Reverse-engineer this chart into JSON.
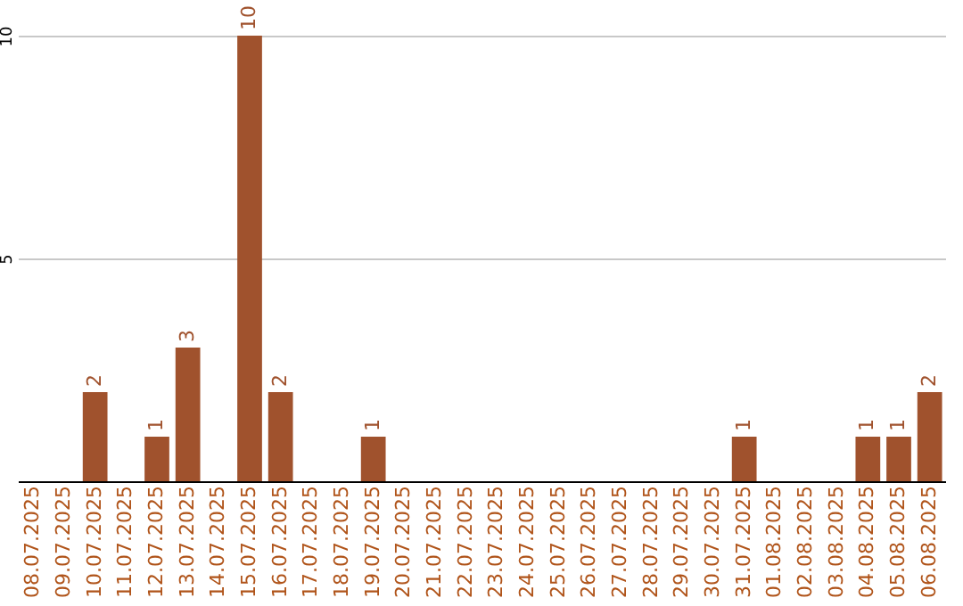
{
  "chart_data": {
    "type": "bar",
    "categories": [
      "08.07.2025",
      "09.07.2025",
      "10.07.2025",
      "11.07.2025",
      "12.07.2025",
      "13.07.2025",
      "14.07.2025",
      "15.07.2025",
      "16.07.2025",
      "17.07.2025",
      "18.07.2025",
      "19.07.2025",
      "20.07.2025",
      "21.07.2025",
      "22.07.2025",
      "23.07.2025",
      "24.07.2025",
      "25.07.2025",
      "26.07.2025",
      "27.07.2025",
      "28.07.2025",
      "29.07.2025",
      "30.07.2025",
      "31.07.2025",
      "01.08.2025",
      "02.08.2025",
      "03.08.2025",
      "04.08.2025",
      "05.08.2025",
      "06.08.2025"
    ],
    "values": [
      null,
      null,
      2,
      null,
      1,
      3,
      null,
      10,
      2,
      null,
      null,
      1,
      null,
      null,
      null,
      null,
      null,
      null,
      null,
      null,
      null,
      null,
      null,
      1,
      null,
      null,
      null,
      1,
      1,
      2
    ],
    "color": "#a0522d",
    "ylim": [
      0,
      10
    ],
    "yticks": [
      5,
      10
    ],
    "grid": "y",
    "data_labels": true
  }
}
